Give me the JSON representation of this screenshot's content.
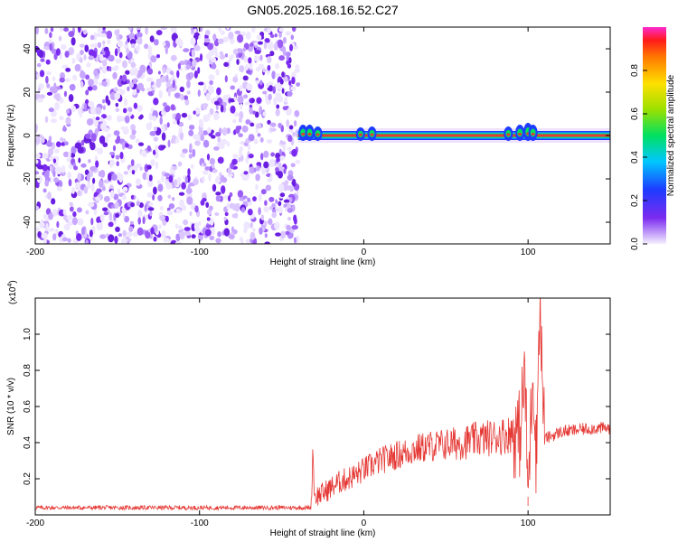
{
  "title": "GN05.2025.168.16.52.C27",
  "colors": {
    "signal_band": "#e53935",
    "snr_line": "#e53935",
    "noise_purple": "#7b2bf0",
    "axis": "#000000"
  },
  "chart_data": [
    {
      "type": "heatmap",
      "xlabel": "Height of straight line (km)",
      "ylabel": "Frequency (Hz)",
      "xlim": [
        -200,
        150
      ],
      "ylim": [
        -50,
        50
      ],
      "xticks": [
        -200,
        -100,
        0,
        100
      ],
      "yticks": [
        -40,
        -20,
        0,
        20,
        40
      ],
      "colorbar": {
        "label": "Normalized spectral amplitude",
        "range": [
          0,
          1
        ],
        "ticks": [
          "0.0",
          "0.2",
          "0.4",
          "0.6",
          "0.8"
        ],
        "colormap": "rainbow"
      },
      "noise_region_x": [
        -200,
        -40
      ],
      "signal_region_x": [
        -40,
        150
      ],
      "signal_frequency_hz": 0
    },
    {
      "type": "line",
      "xlabel": "Height of straight line (km)",
      "ylabel": "SNR (10 * v/v)",
      "multiplier": "(x10",
      "multiplier_exp": "4",
      "multiplier_close": ")",
      "xlim": [
        -200,
        150
      ],
      "ylim": [
        0,
        1.2
      ],
      "xticks": [
        -200,
        -100,
        0,
        100
      ],
      "yticks": [
        "0.2",
        "0.4",
        "0.6",
        "0.8",
        "1.0"
      ],
      "series": [
        {
          "x": [
            -200,
            -150,
            -100,
            -50,
            -32,
            -31,
            -30,
            -25,
            -20,
            -15,
            -10,
            -5,
            0,
            10,
            20,
            30,
            40,
            50,
            60,
            70,
            80,
            90,
            95,
            98,
            100,
            103,
            105,
            107,
            110,
            120,
            130,
            140,
            150
          ],
          "y": [
            0.04,
            0.04,
            0.04,
            0.04,
            0.04,
            0.38,
            0.1,
            0.12,
            0.15,
            0.18,
            0.2,
            0.22,
            0.25,
            0.3,
            0.33,
            0.36,
            0.38,
            0.39,
            0.4,
            0.42,
            0.43,
            0.45,
            0.45,
            0.8,
            0.1,
            0.85,
            0.3,
            1.2,
            0.42,
            0.46,
            0.47,
            0.48,
            0.48
          ]
        }
      ]
    }
  ]
}
